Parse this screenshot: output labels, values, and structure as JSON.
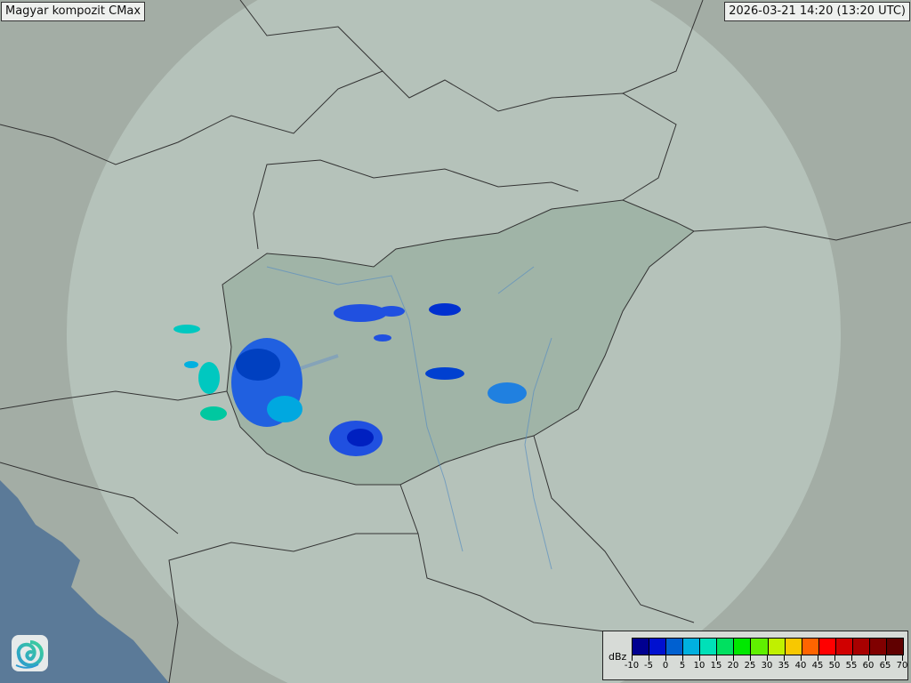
{
  "header": {
    "title": "Magyar kompozit  CMax",
    "timestamp": "2026-03-21 14:20 (13:20 UTC)"
  },
  "legend": {
    "unit": "dBz",
    "ticks": [
      "-10",
      "-5",
      "0",
      "5",
      "10",
      "15",
      "20",
      "25",
      "30",
      "35",
      "40",
      "45",
      "50",
      "55",
      "60",
      "65",
      "70"
    ],
    "colors": [
      "#000090",
      "#0010d0",
      "#0060d0",
      "#00b0e0",
      "#00e0b8",
      "#00e060",
      "#00e800",
      "#60f000",
      "#c0f000",
      "#f8c800",
      "#ff6400",
      "#ff0000",
      "#d00000",
      "#a80000",
      "#800000",
      "#600000"
    ]
  },
  "logo": {
    "icon": "swirl-logo-icon"
  },
  "map": {
    "land_color": "#a3ada5",
    "coverage_color": "#b9c5bd",
    "country_color": "#9bb0a2",
    "sea_color": "#5b7a98"
  }
}
